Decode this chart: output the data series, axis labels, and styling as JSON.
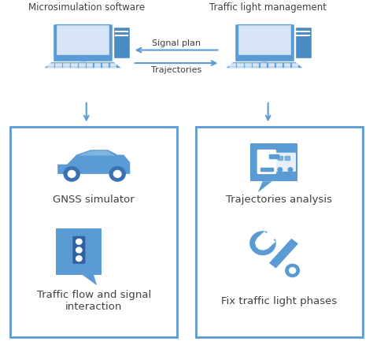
{
  "bg_color": "#ffffff",
  "box_color": "#5b9bd5",
  "box_border": "#5b9bd5",
  "text_color": "#404040",
  "arrow_color": "#5b9bd5",
  "title_left": "Microsimulation software",
  "title_right": "Traffic light management",
  "arrow_label_top": "Signal plan",
  "arrow_label_bottom": "Trajectories",
  "left_panel_labels": [
    "GNSS simulator",
    "Traffic flow and signal\ninteraction"
  ],
  "right_panel_labels": [
    "Trajectories analysis",
    "Fix traffic light phases"
  ],
  "monitor_color": "#5b9bd5",
  "monitor_dark": "#4472c4",
  "icon_color": "#5b9bd5"
}
